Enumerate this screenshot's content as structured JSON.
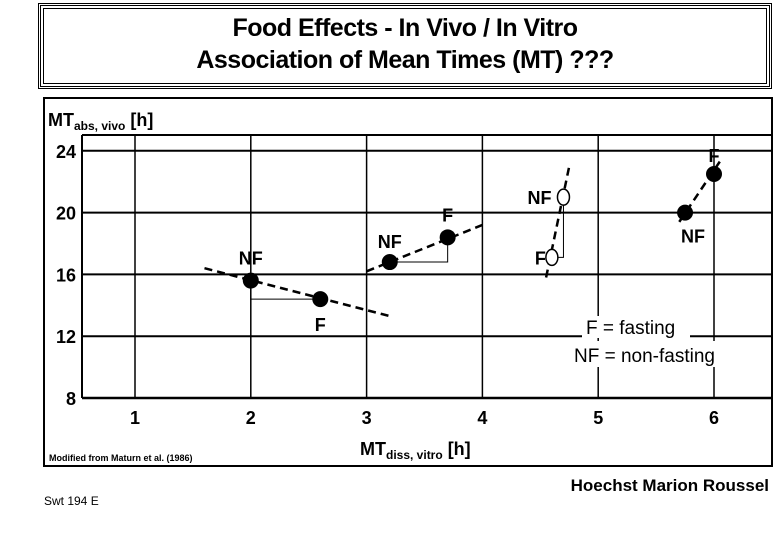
{
  "title": {
    "line1": "Food Effects - In Vivo / In Vitro",
    "line2": "Association of Mean Times (MT) ???"
  },
  "source_note": "Modified from Maturn et al. (1986)",
  "brand": "Hoechst Marion Roussel",
  "slide_code": "Swt 194 E",
  "chart_data": {
    "type": "scatter",
    "xlabel": {
      "main": "MT",
      "sub": "diss, vitro",
      "unit": "[h]"
    },
    "ylabel": {
      "main": "MT",
      "sub": "abs, vivo",
      "unit": "[h]"
    },
    "xlim": [
      0.6,
      6.5
    ],
    "ylim": [
      8,
      25
    ],
    "xticks": [
      "1",
      "2",
      "3",
      "4",
      "5",
      "6"
    ],
    "yticks": [
      "24",
      "20",
      "16",
      "12",
      "8"
    ],
    "grid": true,
    "legend": {
      "f": "F = fasting",
      "nf": "NF = non-fasting",
      "placement": "bottom-right"
    },
    "groups": [
      {
        "points": [
          {
            "label": "NF",
            "x": 2.0,
            "y": 15.6
          },
          {
            "label": "F",
            "x": 2.6,
            "y": 14.4
          }
        ],
        "filled": true,
        "trend": [
          [
            1.6,
            16.4
          ],
          [
            3.2,
            13.3
          ]
        ]
      },
      {
        "points": [
          {
            "label": "NF",
            "x": 3.2,
            "y": 16.8
          },
          {
            "label": "F",
            "x": 3.7,
            "y": 18.4
          }
        ],
        "filled": true,
        "trend": [
          [
            3.0,
            16.2
          ],
          [
            4.0,
            19.2
          ]
        ]
      },
      {
        "points": [
          {
            "label": "NF",
            "x": 4.7,
            "y": 21.0
          },
          {
            "label": "F",
            "x": 4.6,
            "y": 17.1
          }
        ],
        "filled": false,
        "trend": [
          [
            4.55,
            15.8
          ],
          [
            4.75,
            23.0
          ]
        ]
      },
      {
        "points": [
          {
            "label": "NF",
            "x": 5.75,
            "y": 20.0
          },
          {
            "label": "F",
            "x": 6.0,
            "y": 22.5
          }
        ],
        "filled": true,
        "trend": [
          [
            5.7,
            19.4
          ],
          [
            6.05,
            23.3
          ]
        ]
      }
    ]
  }
}
